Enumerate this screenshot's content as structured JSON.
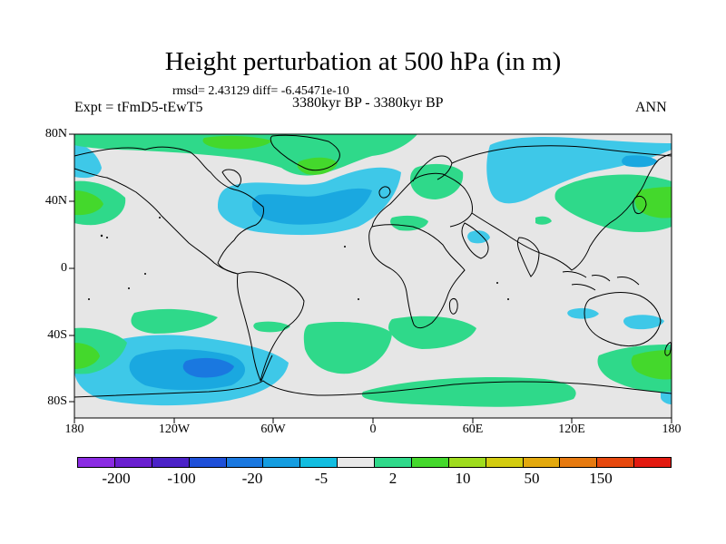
{
  "figure": {
    "title": "Height perturbation at 500 hPa (in m)",
    "stats": "rmsd= 2.43129 diff= -6.45471e-10",
    "experiment": "Expt = tFmD5-tEwT5",
    "period": "3380kyr BP - 3380kyr BP",
    "season": "ANN"
  },
  "map": {
    "lat_ticks": [
      "80N",
      "40N",
      "0",
      "40S",
      "80S"
    ],
    "lon_ticks": [
      "180",
      "120W",
      "60W",
      "0",
      "60E",
      "120E",
      "180"
    ],
    "background_color": "#e6e6e6"
  },
  "colorbar": {
    "colors": [
      "#8a2be2",
      "#6a1fd0",
      "#4b22c8",
      "#1e4fd8",
      "#1a78e0",
      "#159de0",
      "#12bde0",
      "#e8e8e8",
      "#2fd98a",
      "#44d82c",
      "#9fdc1e",
      "#d3cc10",
      "#e3a90e",
      "#e67a10",
      "#e6480e",
      "#e21a10"
    ],
    "labels": [
      "-200",
      "-100",
      "-20",
      "-5",
      "2",
      "10",
      "50",
      "150"
    ]
  },
  "field_colors": {
    "neg_light": "#3ec8e8",
    "neg_mid": "#1aa8e0",
    "neg_strong": "#1a78e0",
    "pos_light": "#2fd98a",
    "pos_mid": "#44d82c"
  }
}
